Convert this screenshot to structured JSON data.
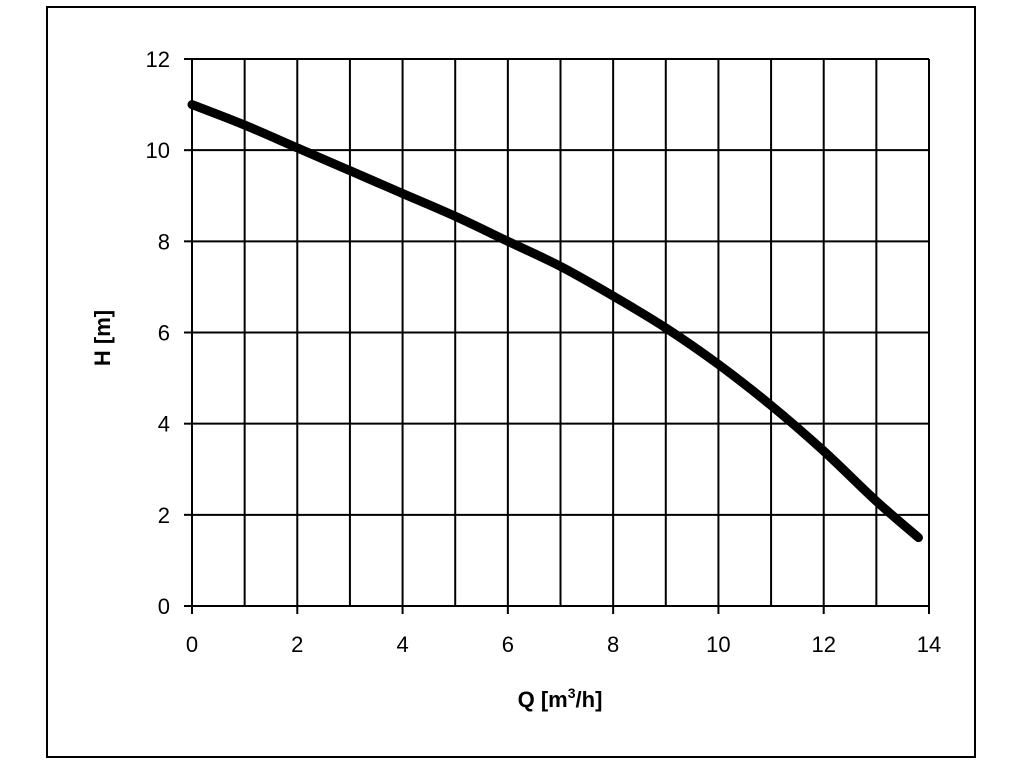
{
  "chart_data": {
    "type": "line",
    "title": "",
    "xlabel": "Q [m",
    "xlabel_sup": "3",
    "xlabel_tail": "/h]",
    "ylabel": "H [m]",
    "xlim": [
      0,
      14
    ],
    "ylim": [
      0,
      12
    ],
    "x_ticks": [
      0,
      2,
      4,
      6,
      8,
      10,
      12,
      14
    ],
    "y_ticks": [
      0,
      2,
      4,
      6,
      8,
      10,
      12
    ],
    "x_gridlines": [
      0,
      1,
      2,
      3,
      4,
      5,
      6,
      7,
      8,
      9,
      10,
      11,
      12,
      13,
      14
    ],
    "y_gridlines": [
      0,
      2,
      4,
      6,
      8,
      10,
      12
    ],
    "grid": true,
    "legend": "none",
    "line_color": "#000000",
    "series": [
      {
        "x": [
          0,
          1,
          2,
          3,
          4,
          5,
          6,
          7,
          8,
          9,
          10,
          11,
          12,
          13,
          13.8
        ],
        "values": [
          11.0,
          10.55,
          10.05,
          9.55,
          9.05,
          8.55,
          8.0,
          7.45,
          6.8,
          6.1,
          5.3,
          4.4,
          3.4,
          2.3,
          1.5
        ]
      }
    ]
  }
}
